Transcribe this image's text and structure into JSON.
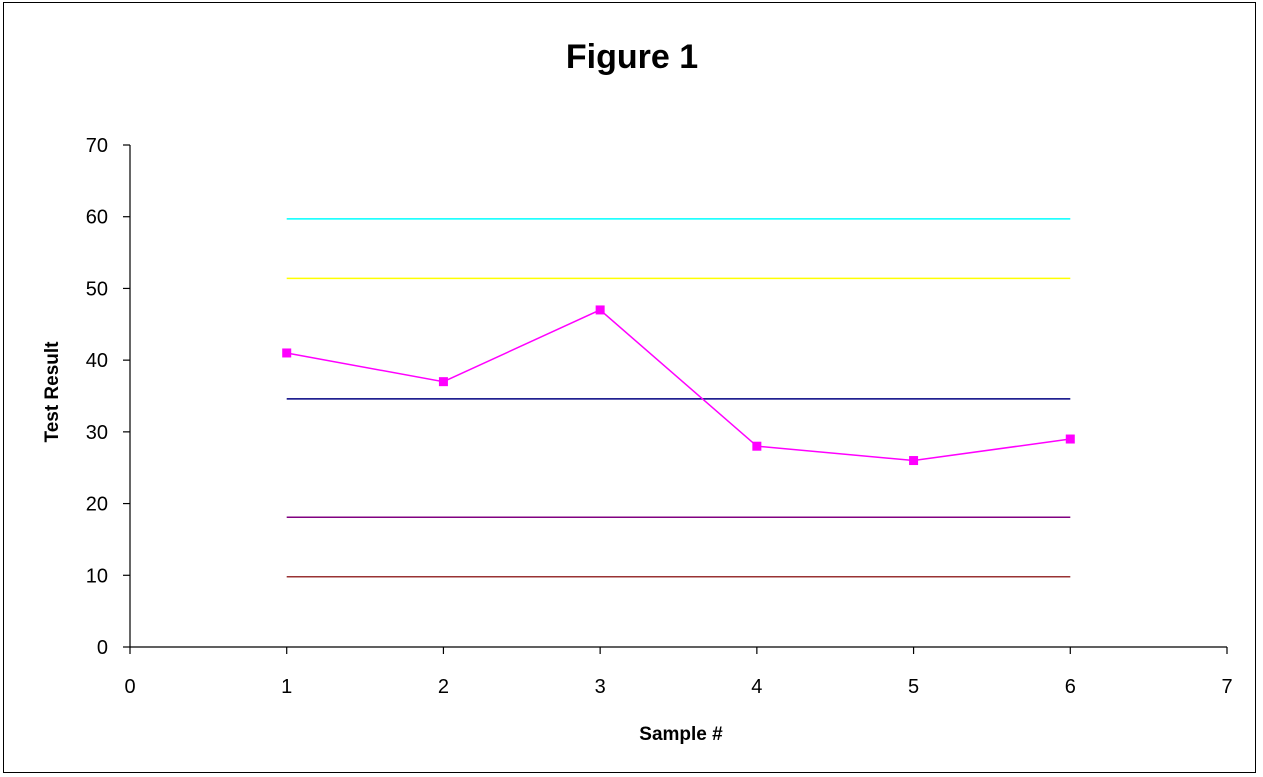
{
  "chart_data": {
    "type": "line",
    "title": "Figure 1",
    "xlabel": "Sample #",
    "ylabel": "Test Result",
    "xlim": [
      0,
      7
    ],
    "ylim": [
      0,
      70
    ],
    "x_ticks": [
      0,
      1,
      2,
      3,
      4,
      5,
      6,
      7
    ],
    "y_ticks": [
      0,
      10,
      20,
      30,
      40,
      50,
      60,
      70
    ],
    "grid": false,
    "legend": "none",
    "series": [
      {
        "x": [
          1,
          6
        ],
        "values": [
          59.7,
          59.7
        ],
        "color": "#00FFFF"
      },
      {
        "x": [
          1,
          6
        ],
        "values": [
          51.4,
          51.4
        ],
        "color": "#FFFF00"
      },
      {
        "x": [
          1,
          6
        ],
        "values": [
          34.6,
          34.6
        ],
        "color": "#000080"
      },
      {
        "x": [
          1,
          6
        ],
        "values": [
          18.1,
          18.1
        ],
        "color": "#800080"
      },
      {
        "x": [
          1,
          6
        ],
        "values": [
          9.8,
          9.8
        ],
        "color": "#993333"
      },
      {
        "x": [
          1,
          2,
          3,
          4,
          5,
          6
        ],
        "values": [
          41,
          37,
          47,
          28,
          26,
          29
        ],
        "color": "#FF00FF",
        "markers": true
      }
    ]
  }
}
